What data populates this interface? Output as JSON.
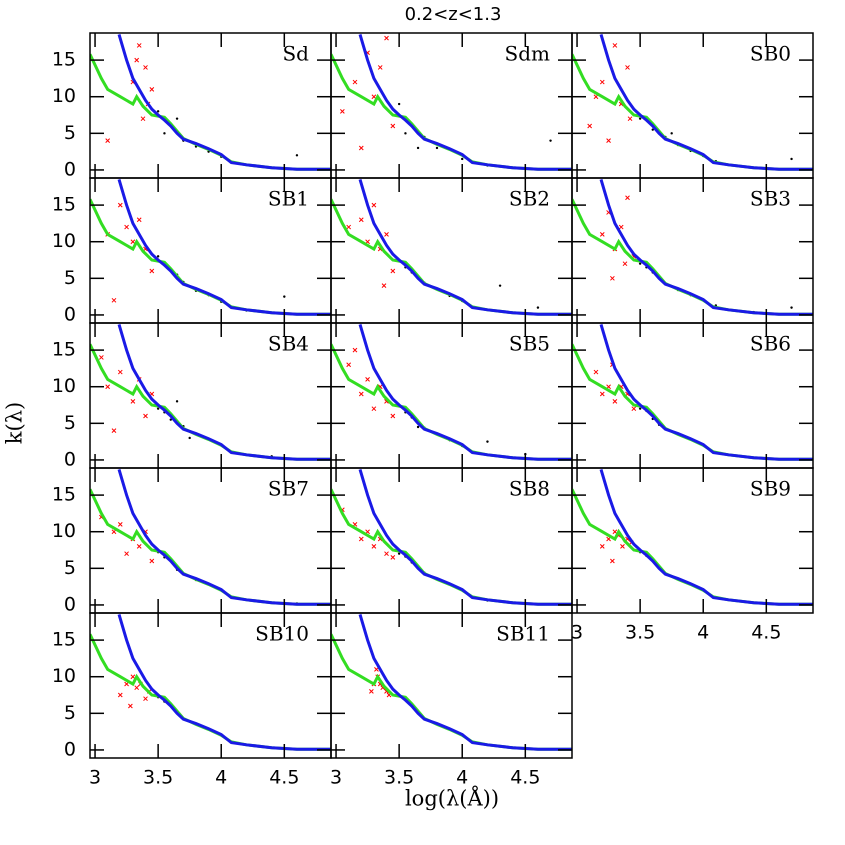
{
  "chart_data": {
    "type": "scatter",
    "title": "0.2<z<1.3",
    "x_label": "log(λ(Å))",
    "y_label": "k(λ)",
    "xlim": [
      2.96,
      4.87
    ],
    "ylim": [
      -1.1,
      18.7
    ],
    "xticks": [
      3,
      3.5,
      4,
      {
        "value": 4.5,
        "label": "4.5"
      }
    ],
    "yticks": [
      0,
      5,
      10,
      15
    ],
    "point_colors": [
      "#ff0000",
      "#000000"
    ],
    "lines": [
      {
        "color": "#33dd22",
        "x": [
          2.96,
          3.05,
          3.1,
          3.2,
          3.3,
          3.33,
          3.38,
          3.45,
          3.55,
          3.6,
          3.7,
          3.8,
          3.9,
          4.0,
          4.08,
          4.2,
          4.4,
          4.6,
          4.87
        ],
        "values": [
          15.8,
          12.5,
          11,
          10,
          9,
          10,
          8.7,
          7.5,
          7.2,
          6.3,
          4.3,
          3.5,
          2.8,
          2,
          1.1,
          0.7,
          0.3,
          0.1,
          0.1
        ]
      },
      {
        "color": "#1a1ae6",
        "x": [
          3.19,
          3.25,
          3.3,
          3.35,
          3.4,
          3.45,
          3.5,
          3.55,
          3.6,
          3.65,
          3.7,
          3.8,
          3.9,
          4.0,
          4.08,
          4.2,
          4.4,
          4.6,
          4.87
        ],
        "values": [
          18.5,
          15,
          12.5,
          11,
          9.5,
          8.3,
          7.5,
          6.8,
          6,
          5,
          4.2,
          3.6,
          2.9,
          2.1,
          1,
          0.7,
          0.3,
          0.1,
          0.1
        ]
      }
    ],
    "panels": [
      {
        "name": "Sd",
        "red": {
          "x": [
            3.3,
            3.35,
            3.4,
            3.42,
            3.38,
            3.45,
            3.33,
            3.1
          ],
          "y": [
            12,
            17,
            14,
            9,
            7,
            11,
            15,
            4
          ]
        },
        "black": {
          "x": [
            3.5,
            3.6,
            3.7,
            3.8,
            3.9,
            4.0,
            3.55,
            3.65,
            4.3,
            4.6
          ],
          "y": [
            8,
            6,
            4,
            3.2,
            2.5,
            1.8,
            5,
            7,
            0.5,
            2
          ]
        }
      },
      {
        "name": "Sdm",
        "red": {
          "x": [
            3.05,
            3.15,
            3.25,
            3.3,
            3.35,
            3.4,
            3.45,
            3.2
          ],
          "y": [
            8,
            12,
            16,
            10,
            14,
            18,
            6,
            3
          ]
        },
        "black": {
          "x": [
            3.5,
            3.55,
            3.6,
            3.7,
            3.8,
            3.9,
            4.0,
            3.65,
            4.2,
            4.7
          ],
          "y": [
            9,
            5,
            6,
            4.5,
            3,
            2.8,
            1.5,
            3,
            0.6,
            4
          ]
        }
      },
      {
        "name": "SB0",
        "red": {
          "x": [
            3.1,
            3.2,
            3.3,
            3.35,
            3.4,
            3.42,
            3.25,
            3.15
          ],
          "y": [
            6,
            12,
            17,
            9,
            14,
            7,
            4,
            10
          ]
        },
        "black": {
          "x": [
            3.5,
            3.6,
            3.7,
            3.8,
            3.9,
            4.0,
            4.1,
            3.75,
            4.4,
            4.7
          ],
          "y": [
            7,
            5.5,
            4.5,
            3.4,
            2.6,
            1.9,
            1.2,
            5,
            0.3,
            1.5
          ]
        }
      },
      {
        "name": "SB1",
        "red": {
          "x": [
            3.2,
            3.25,
            3.3,
            3.35,
            3.4,
            3.45,
            3.15,
            3.1
          ],
          "y": [
            15,
            12,
            10,
            13,
            9,
            6,
            2,
            11
          ]
        },
        "black": {
          "x": [
            3.5,
            3.55,
            3.6,
            3.7,
            3.8,
            3.9,
            4.0,
            3.65,
            4.2,
            4.5
          ],
          "y": [
            8,
            7,
            6,
            4.5,
            3.3,
            2.7,
            1.8,
            5.5,
            0.6,
            2.5
          ]
        }
      },
      {
        "name": "SB2",
        "red": {
          "x": [
            3.2,
            3.3,
            3.35,
            3.4,
            3.45,
            3.25,
            3.38,
            3.1
          ],
          "y": [
            13,
            15,
            9,
            11,
            6,
            10,
            4,
            12
          ]
        },
        "black": {
          "x": [
            3.5,
            3.55,
            3.6,
            3.7,
            3.8,
            3.9,
            4.0,
            4.3,
            4.6,
            3.65
          ],
          "y": [
            7.5,
            6.5,
            5.8,
            4.4,
            3.5,
            2.6,
            1.9,
            4,
            1,
            5
          ]
        }
      },
      {
        "name": "SB3",
        "red": {
          "x": [
            3.2,
            3.25,
            3.3,
            3.35,
            3.4,
            3.45,
            3.28,
            3.38
          ],
          "y": [
            11,
            14,
            9,
            12,
            16,
            8,
            5,
            7
          ]
        },
        "black": {
          "x": [
            3.5,
            3.6,
            3.7,
            3.8,
            3.9,
            4.0,
            4.1,
            3.55,
            4.4,
            4.7
          ],
          "y": [
            7,
            5.8,
            4.3,
            3.4,
            2.7,
            2,
            1.3,
            6.5,
            0.4,
            1
          ]
        }
      },
      {
        "name": "SB4",
        "red": {
          "x": [
            3.05,
            3.1,
            3.2,
            3.3,
            3.35,
            3.4,
            3.45,
            3.15
          ],
          "y": [
            14,
            10,
            12,
            8,
            11,
            6,
            9,
            4
          ]
        },
        "black": {
          "x": [
            3.5,
            3.55,
            3.6,
            3.7,
            3.8,
            3.9,
            4.0,
            3.65,
            3.75,
            4.4
          ],
          "y": [
            7,
            6.5,
            5.5,
            4.6,
            3.6,
            2.8,
            2,
            8,
            3,
            0.5
          ]
        }
      },
      {
        "name": "SB5",
        "red": {
          "x": [
            3.1,
            3.2,
            3.25,
            3.3,
            3.35,
            3.4,
            3.45,
            3.15
          ],
          "y": [
            13,
            9,
            11,
            7,
            10,
            8,
            6,
            15
          ]
        },
        "black": {
          "x": [
            3.5,
            3.55,
            3.6,
            3.7,
            3.8,
            3.9,
            4.0,
            4.2,
            4.5,
            3.65
          ],
          "y": [
            7.5,
            6.5,
            5.8,
            4.4,
            3.5,
            2.7,
            1.9,
            2.5,
            0.8,
            4.5
          ]
        }
      },
      {
        "name": "SB6",
        "red": {
          "x": [
            3.15,
            3.2,
            3.25,
            3.3,
            3.35,
            3.4,
            3.45,
            3.28
          ],
          "y": [
            12,
            9,
            10,
            8,
            10,
            9,
            7,
            13
          ]
        },
        "black": {
          "x": [
            3.5,
            3.55,
            3.6,
            3.7,
            3.8,
            3.9,
            4.0,
            3.65,
            4.2,
            4.5
          ],
          "y": [
            7,
            6.7,
            5.6,
            4.3,
            3.5,
            2.8,
            2,
            4.8,
            0.7,
            0.2
          ]
        }
      },
      {
        "name": "SB7",
        "red": {
          "x": [
            3.05,
            3.15,
            3.2,
            3.25,
            3.3,
            3.35,
            3.4,
            3.45
          ],
          "y": [
            12,
            10,
            11,
            7,
            9,
            8,
            10,
            6
          ]
        },
        "black": {
          "x": [
            3.5,
            3.55,
            3.6,
            3.65,
            3.7,
            3.8,
            3.9,
            4.0,
            4.3,
            4.6
          ],
          "y": [
            7.2,
            6.5,
            6,
            4.8,
            4.2,
            3.4,
            2.8,
            2,
            0.5,
            0.2
          ]
        }
      },
      {
        "name": "SB8",
        "red": {
          "x": [
            3.05,
            3.15,
            3.2,
            3.25,
            3.3,
            3.35,
            3.4,
            3.45
          ],
          "y": [
            13,
            11,
            9,
            10,
            8,
            9,
            7,
            6.5
          ]
        },
        "black": {
          "x": [
            3.5,
            3.55,
            3.6,
            3.7,
            3.8,
            3.9,
            4.0,
            3.65,
            4.2,
            4.5
          ],
          "y": [
            7,
            6.6,
            5.8,
            4.4,
            3.5,
            2.8,
            2,
            5,
            0.6,
            0.2
          ]
        }
      },
      {
        "name": "SB9",
        "red": {
          "x": [
            3.2,
            3.25,
            3.3,
            3.33,
            3.36,
            3.4,
            3.43,
            3.28
          ],
          "y": [
            8,
            9,
            10,
            9.5,
            8,
            9,
            8.5,
            6
          ]
        },
        "black": {
          "x": [
            3.5,
            3.55,
            3.6,
            3.7,
            3.8,
            3.9,
            4.0,
            4.2,
            4.4,
            3.65
          ],
          "y": [
            7.2,
            6.7,
            6,
            4.3,
            3.5,
            2.8,
            2,
            0.7,
            0.3,
            5
          ]
        }
      },
      {
        "name": "SB10",
        "red": {
          "x": [
            3.2,
            3.25,
            3.3,
            3.33,
            3.36,
            3.4,
            3.43,
            3.28
          ],
          "y": [
            7.5,
            9,
            10,
            8.5,
            9,
            7,
            8,
            6
          ]
        },
        "black": {
          "x": [
            3.5,
            3.6,
            3.7,
            3.8,
            3.9,
            4.0,
            4.2,
            4.4,
            4.6,
            3.55
          ],
          "y": [
            7.2,
            6,
            4.3,
            3.5,
            2.8,
            2,
            0.7,
            0.3,
            0.1,
            6.6
          ]
        }
      },
      {
        "name": "SB11",
        "red": {
          "x": [
            3.28,
            3.3,
            3.33,
            3.35,
            3.37,
            3.4,
            3.42,
            3.32
          ],
          "y": [
            8,
            9,
            10,
            9,
            8.5,
            8,
            7.5,
            11
          ]
        },
        "black": {
          "x": [
            3.5,
            3.6,
            3.7,
            3.8,
            3.9,
            4.0,
            4.2,
            4.4,
            4.6,
            3.55
          ],
          "y": [
            7.4,
            6,
            4.3,
            3.5,
            2.8,
            2,
            0.7,
            0.3,
            0.1,
            6.8
          ]
        }
      }
    ]
  }
}
